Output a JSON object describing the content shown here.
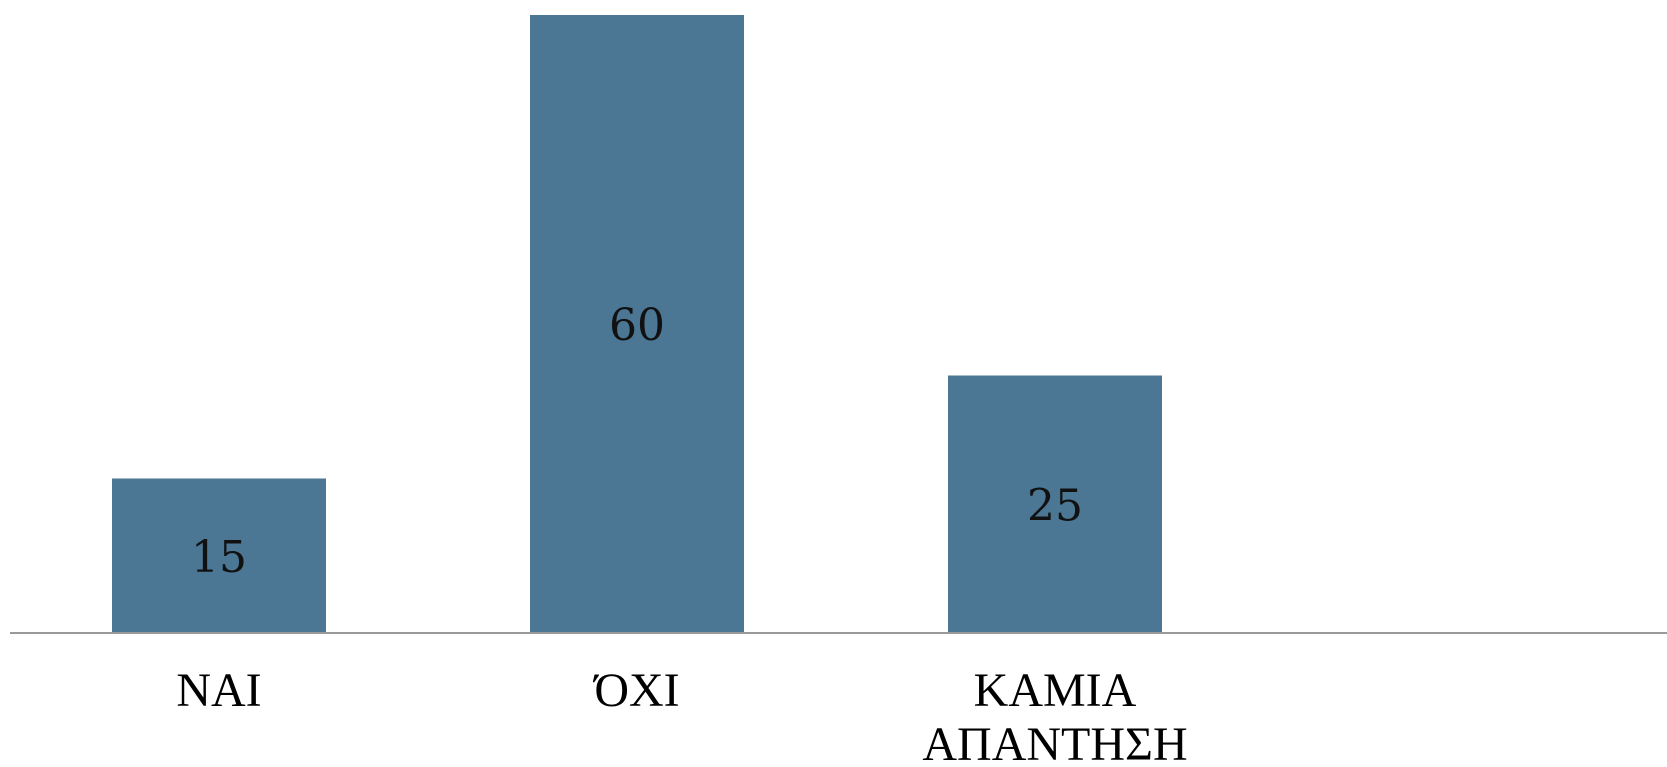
{
  "chart_data": {
    "type": "bar",
    "categories": [
      [
        "ΝΑΙ"
      ],
      [
        "ΌΧΙ"
      ],
      [
        "ΚΑΜΙΑ",
        "ΑΠΑΝΤΗΣΗ"
      ]
    ],
    "values": [
      15,
      60,
      25
    ],
    "data_labels": [
      "15",
      "60",
      "25"
    ],
    "ylim": [
      0,
      60
    ],
    "grid": false,
    "legend": "none",
    "colors": {
      "bar": "#4b7794",
      "axis": "#9a9a9a",
      "label": "#111111"
    }
  }
}
